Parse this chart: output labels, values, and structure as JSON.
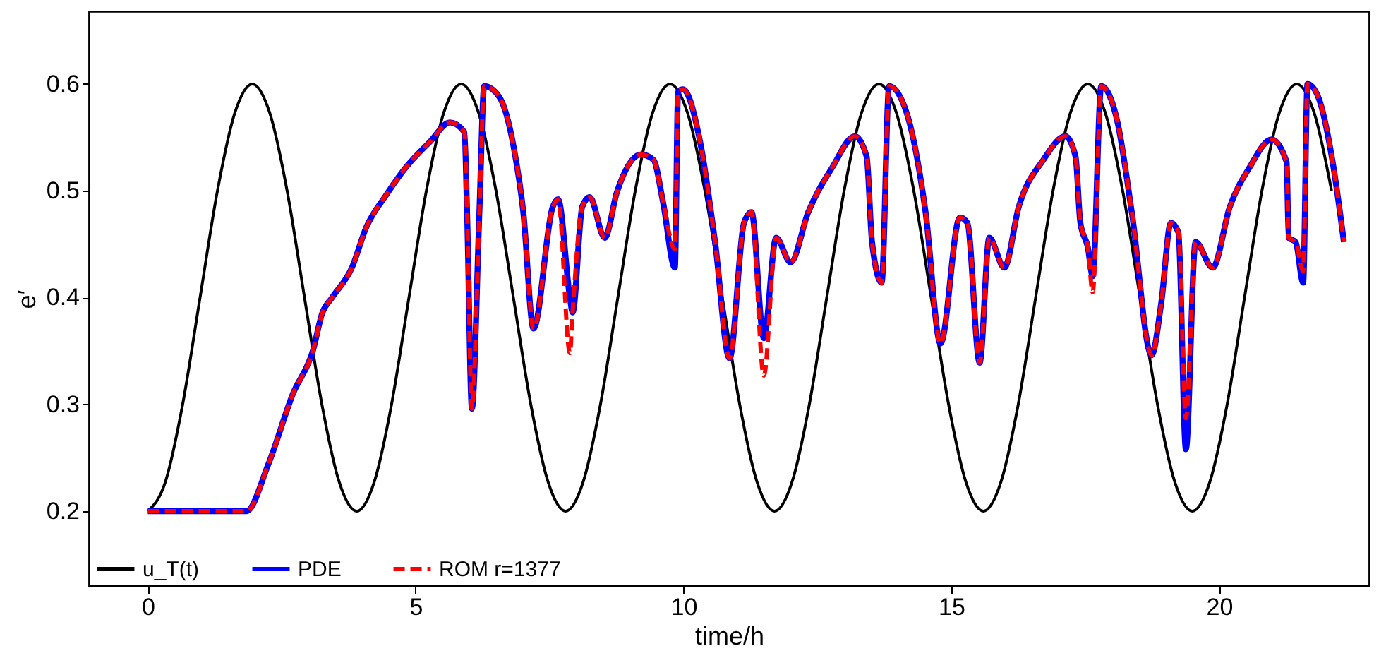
{
  "chart_data": {
    "type": "line",
    "xlabel": "time/h",
    "ylabel": "e′",
    "xlim": [
      -1.1,
      22.8
    ],
    "ylim": [
      0.13,
      0.668
    ],
    "xticks": [
      0,
      5,
      10,
      15,
      20
    ],
    "yticks": [
      0.2,
      0.3,
      0.4,
      0.5,
      0.6
    ],
    "grid": false,
    "legend": "bottom left",
    "marker": "none",
    "series": [
      {
        "name": "u_T(t)",
        "color": "#000000",
        "line_style": "solid",
        "x": [
          0,
          0.325,
          0.65,
          0.975,
          1.3,
          1.625,
          1.95,
          2.275,
          2.6,
          2.925,
          3.25,
          3.575,
          3.9,
          4.225,
          4.55,
          4.875,
          5.2,
          5.525,
          5.85,
          6.175,
          6.5,
          6.825,
          7.15,
          7.475,
          7.8,
          8.125,
          8.45,
          8.775,
          9.1,
          9.425,
          9.75,
          10.075,
          10.4,
          10.725,
          11.05,
          11.375,
          11.7,
          12.025,
          12.35,
          12.675,
          13.0,
          13.325,
          13.65,
          13.975,
          14.3,
          14.625,
          14.95,
          15.275,
          15.6,
          15.925,
          16.25,
          16.575,
          16.9,
          17.225,
          17.55,
          17.875,
          18.2,
          18.525,
          18.85,
          19.175,
          19.5,
          19.825,
          20.15,
          20.475,
          20.8,
          21.125,
          21.45,
          21.775,
          22.1
        ],
        "values": [
          0.2,
          0.227,
          0.3,
          0.4,
          0.5,
          0.573,
          0.6,
          0.573,
          0.5,
          0.4,
          0.3,
          0.227,
          0.2,
          0.227,
          0.3,
          0.4,
          0.5,
          0.573,
          0.6,
          0.573,
          0.5,
          0.4,
          0.3,
          0.227,
          0.2,
          0.227,
          0.3,
          0.4,
          0.5,
          0.573,
          0.6,
          0.573,
          0.5,
          0.4,
          0.3,
          0.227,
          0.2,
          0.227,
          0.3,
          0.4,
          0.5,
          0.573,
          0.6,
          0.573,
          0.5,
          0.4,
          0.3,
          0.227,
          0.2,
          0.227,
          0.3,
          0.4,
          0.5,
          0.573,
          0.6,
          0.573,
          0.5,
          0.4,
          0.3,
          0.227,
          0.2,
          0.227,
          0.3,
          0.4,
          0.5,
          0.573,
          0.6,
          0.573,
          0.5
        ]
      },
      {
        "name": "PDE",
        "color": "#0000ff",
        "line_style": "solid",
        "x": [
          0,
          1.84,
          2.25,
          2.71,
          3.08,
          3.26,
          3.44,
          3.81,
          4.08,
          4.45,
          4.82,
          5.27,
          5.64,
          5.91,
          5.96,
          6.05,
          6.19,
          6.28,
          6.56,
          6.83,
          7.01,
          7.2,
          7.56,
          7.66,
          7.88,
          7.93,
          8.11,
          8.25,
          8.53,
          8.76,
          9.21,
          9.44,
          9.62,
          9.84,
          9.9,
          9.99,
          10.31,
          10.59,
          10.86,
          11.13,
          11.27,
          11.5,
          11.73,
          12.0,
          12.33,
          12.78,
          13.2,
          13.42,
          13.52,
          13.7,
          13.84,
          14.16,
          14.52,
          14.8,
          15.16,
          15.3,
          15.53,
          15.71,
          15.99,
          16.26,
          16.72,
          17.13,
          17.32,
          17.41,
          17.55,
          17.64,
          17.8,
          18.1,
          18.37,
          18.74,
          18.92,
          19.1,
          19.24,
          19.38,
          19.56,
          19.88,
          20.2,
          20.57,
          20.98,
          21.26,
          21.3,
          21.43,
          21.57,
          21.65,
          21.85,
          22.12,
          22.33
        ],
        "values": [
          0.2,
          0.2,
          0.244,
          0.31,
          0.35,
          0.386,
          0.4,
          0.428,
          0.466,
          0.496,
          0.522,
          0.546,
          0.564,
          0.555,
          0.48,
          0.296,
          0.48,
          0.598,
          0.588,
          0.541,
          0.48,
          0.371,
          0.485,
          0.492,
          0.4,
          0.386,
          0.485,
          0.494,
          0.456,
          0.499,
          0.534,
          0.529,
          0.489,
          0.428,
          0.593,
          0.595,
          0.546,
          0.452,
          0.343,
          0.47,
          0.48,
          0.362,
          0.456,
          0.433,
          0.48,
          0.522,
          0.551,
          0.532,
          0.452,
          0.414,
          0.598,
          0.574,
          0.48,
          0.357,
          0.475,
          0.47,
          0.339,
          0.456,
          0.428,
          0.485,
          0.529,
          0.551,
          0.532,
          0.47,
          0.447,
          0.42,
          0.598,
          0.565,
          0.48,
          0.346,
          0.395,
          0.47,
          0.461,
          0.258,
          0.452,
          0.428,
          0.485,
          0.522,
          0.548,
          0.527,
          0.456,
          0.452,
          0.414,
          0.6,
          0.588,
          0.527,
          0.452
        ]
      },
      {
        "name": "ROM r=1377",
        "color": "#ff0000",
        "line_style": "dashed",
        "x": [
          0,
          1.84,
          2.25,
          2.71,
          3.08,
          3.26,
          3.44,
          3.81,
          4.08,
          4.45,
          4.82,
          5.27,
          5.64,
          5.91,
          5.96,
          6.05,
          6.19,
          6.28,
          6.56,
          6.83,
          7.01,
          7.2,
          7.56,
          7.66,
          7.88,
          7.93,
          8.11,
          8.25,
          8.53,
          8.76,
          9.21,
          9.44,
          9.62,
          9.84,
          9.9,
          9.99,
          10.31,
          10.59,
          10.86,
          11.13,
          11.27,
          11.5,
          11.73,
          12.0,
          12.33,
          12.78,
          13.2,
          13.42,
          13.52,
          13.7,
          13.84,
          14.16,
          14.52,
          14.8,
          15.16,
          15.3,
          15.53,
          15.71,
          15.99,
          16.26,
          16.72,
          17.13,
          17.32,
          17.41,
          17.55,
          17.64,
          17.8,
          18.1,
          18.37,
          18.74,
          18.92,
          19.1,
          19.24,
          19.38,
          19.56,
          19.88,
          20.2,
          20.57,
          20.98,
          21.26,
          21.3,
          21.43,
          21.57,
          21.65,
          21.85,
          22.12,
          22.33
        ],
        "values": [
          0.2,
          0.2,
          0.244,
          0.31,
          0.35,
          0.386,
          0.4,
          0.428,
          0.466,
          0.496,
          0.522,
          0.546,
          0.564,
          0.555,
          0.48,
          0.296,
          0.48,
          0.598,
          0.588,
          0.541,
          0.48,
          0.371,
          0.485,
          0.492,
          0.348,
          0.386,
          0.485,
          0.494,
          0.456,
          0.499,
          0.534,
          0.529,
          0.489,
          0.445,
          0.593,
          0.595,
          0.546,
          0.452,
          0.343,
          0.47,
          0.48,
          0.327,
          0.456,
          0.433,
          0.48,
          0.522,
          0.551,
          0.532,
          0.452,
          0.414,
          0.598,
          0.574,
          0.48,
          0.357,
          0.475,
          0.47,
          0.339,
          0.456,
          0.428,
          0.485,
          0.529,
          0.551,
          0.532,
          0.47,
          0.447,
          0.405,
          0.598,
          0.565,
          0.48,
          0.346,
          0.395,
          0.47,
          0.461,
          0.287,
          0.452,
          0.428,
          0.485,
          0.522,
          0.548,
          0.527,
          0.456,
          0.452,
          0.425,
          0.6,
          0.588,
          0.527,
          0.452
        ]
      }
    ]
  }
}
